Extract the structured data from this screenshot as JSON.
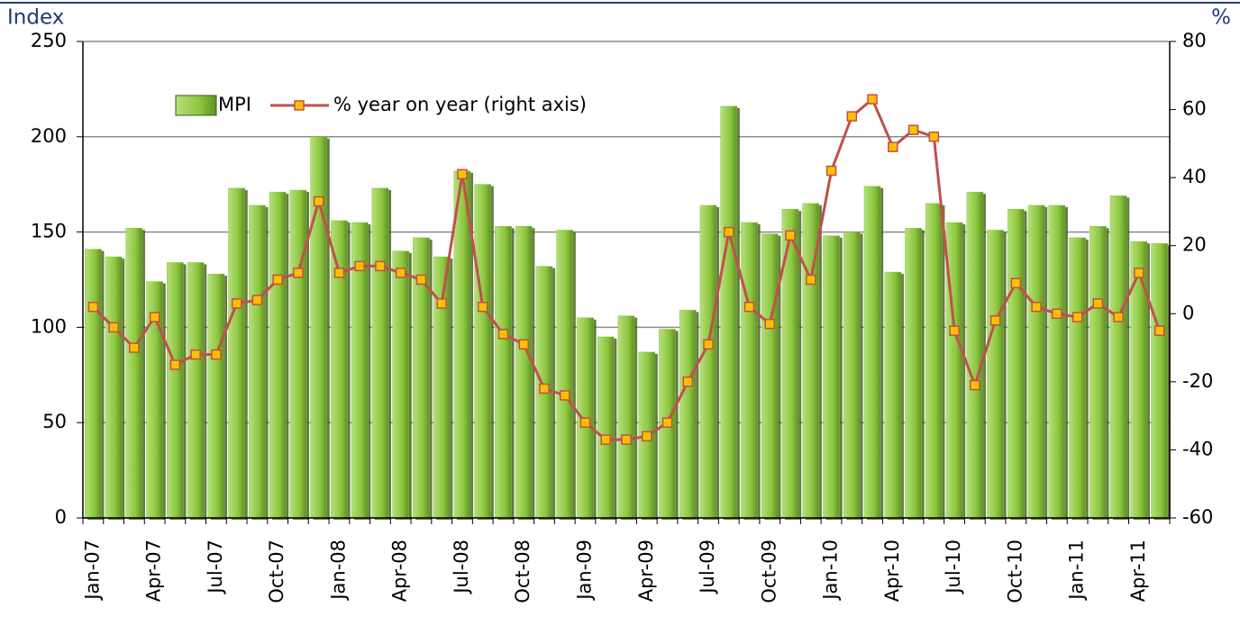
{
  "chart_data": {
    "type": "bar-line",
    "y_label": "Index",
    "y2_label": "%",
    "categories": [
      "Jan-07",
      null,
      null,
      "Apr-07",
      null,
      null,
      "Jul-07",
      null,
      null,
      "Oct-07",
      null,
      null,
      "Jan-08",
      null,
      null,
      "Apr-08",
      null,
      null,
      "Jul-08",
      null,
      null,
      "Oct-08",
      null,
      null,
      "Jan-09",
      null,
      null,
      "Apr-09",
      null,
      null,
      "Jul-09",
      null,
      null,
      "Oct-09",
      null,
      null,
      "Jan-10",
      null,
      null,
      "Apr-10",
      null,
      null,
      "Jul-10",
      null,
      null,
      "Oct-10",
      null,
      null,
      "Jan-11",
      null,
      null,
      "Apr-11",
      null
    ],
    "series": [
      {
        "name": "MPI",
        "type": "bar",
        "color": "#8cc63e",
        "values": [
          141,
          137,
          152,
          124,
          134,
          134,
          128,
          173,
          164,
          171,
          172,
          200,
          156,
          155,
          173,
          140,
          147,
          137,
          182,
          175,
          153,
          153,
          132,
          151,
          105,
          95,
          106,
          87,
          99,
          109,
          164,
          216,
          155,
          149,
          162,
          165,
          148,
          150,
          174,
          129,
          152,
          165,
          155,
          171,
          151,
          162,
          164,
          164,
          147,
          153,
          169,
          145,
          144
        ]
      },
      {
        "name": "% year on year (right axis)",
        "type": "line",
        "axis": "y2",
        "color": "#c0504d",
        "marker_color": "#ffc000",
        "values": [
          2,
          -4,
          -10,
          -1,
          -15,
          -12,
          -12,
          3,
          4,
          10,
          12,
          33,
          12,
          14,
          14,
          12,
          10,
          3,
          41,
          2,
          -6,
          -9,
          -22,
          -24,
          -32,
          -37,
          -37,
          -36,
          -32,
          -20,
          -9,
          24,
          2,
          -3,
          23,
          10,
          42,
          58,
          63,
          49,
          54,
          52,
          -5,
          -21,
          -2,
          9,
          2,
          0,
          -1,
          3,
          -1,
          12,
          -5
        ]
      }
    ],
    "ylim": [
      0,
      250
    ],
    "yticks": [
      0,
      50,
      100,
      150,
      200,
      250
    ],
    "y2lim": [
      -60,
      80
    ],
    "y2ticks": [
      -60,
      -40,
      -20,
      0,
      20,
      40,
      60,
      80
    ],
    "grid": true,
    "legend": "top-left"
  }
}
